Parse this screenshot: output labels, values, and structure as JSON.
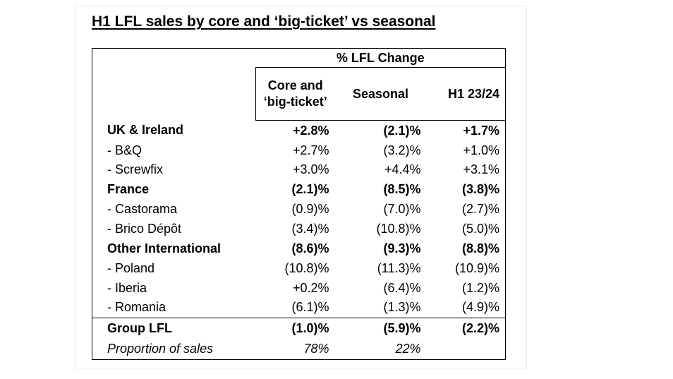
{
  "title": "H1 LFL sales by core and ‘big-ticket’ vs seasonal",
  "table": {
    "group_header": "% LFL Change",
    "columns": [
      "Core and ‘big-ticket’",
      "Seasonal",
      "H1 23/24"
    ],
    "rows": [
      {
        "label": "UK & Ireland",
        "core": "+2.8%",
        "seasonal": "(2.1)%",
        "h1": "+1.7%"
      },
      {
        "label": "- B&Q",
        "core": "+2.7%",
        "seasonal": "(3.2)%",
        "h1": "+1.0%"
      },
      {
        "label": "- Screwfix",
        "core": "+3.0%",
        "seasonal": "+4.4%",
        "h1": "+3.1%"
      },
      {
        "label": "France",
        "core": "(2.1)%",
        "seasonal": "(8.5)%",
        "h1": "(3.8)%"
      },
      {
        "label": "- Castorama",
        "core": "(0.9)%",
        "seasonal": "(7.0)%",
        "h1": "(2.7)%"
      },
      {
        "label": "- Brico Dépôt",
        "core": "(3.4)%",
        "seasonal": "(10.8)%",
        "h1": "(5.0)%"
      },
      {
        "label": "Other International",
        "core": "(8.6)%",
        "seasonal": "(9.3)%",
        "h1": "(8.8)%"
      },
      {
        "label": "- Poland",
        "core": "(10.8)%",
        "seasonal": "(11.3)%",
        "h1": "(10.9)%"
      },
      {
        "label": "- Iberia",
        "core": "+0.2%",
        "seasonal": "(6.4)%",
        "h1": "(1.2)%"
      },
      {
        "label": "- Romania",
        "core": "(6.1)%",
        "seasonal": "(1.3)%",
        "h1": "(4.9)%"
      }
    ],
    "group_total": {
      "label": "Group LFL",
      "core": "(1.0)%",
      "seasonal": "(5.9)%",
      "h1": "(2.2)%"
    },
    "proportion": {
      "label": "Proportion of sales",
      "core": "78%",
      "seasonal": "22%",
      "h1": ""
    }
  }
}
